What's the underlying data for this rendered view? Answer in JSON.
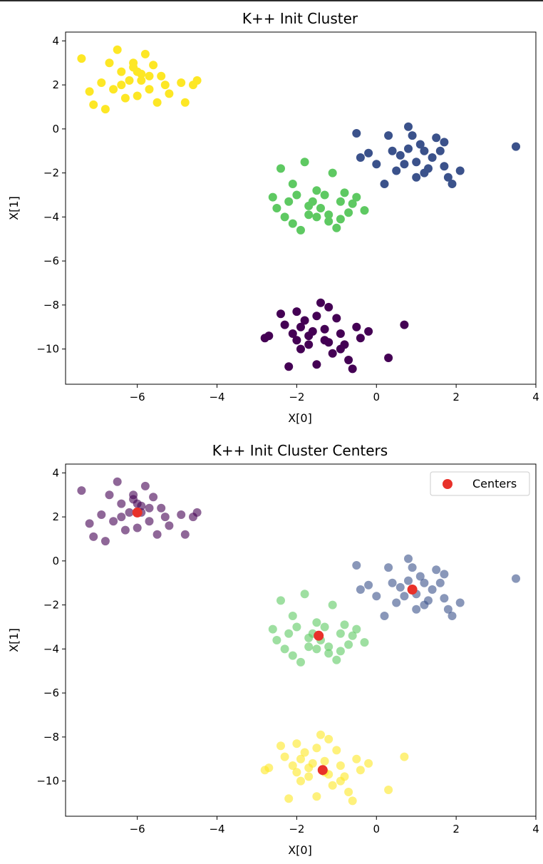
{
  "chart_data": [
    {
      "type": "scatter",
      "title": "K++ Init Cluster",
      "xlabel": "X[0]",
      "ylabel": "X[1]",
      "xlim": [
        -7.8,
        4.0
      ],
      "ylim": [
        -11.6,
        4.4
      ],
      "xticks": [
        -6,
        -4,
        -2,
        0,
        2,
        4
      ],
      "yticks": [
        4,
        2,
        0,
        -2,
        -4,
        -6,
        -8,
        -10
      ],
      "grid": false,
      "point_alpha": 1.0,
      "series": [
        {
          "color": "#440154",
          "points": [
            [
              -2.8,
              -9.5
            ],
            [
              -2.7,
              -9.4
            ],
            [
              -2.4,
              -8.4
            ],
            [
              -2.3,
              -8.9
            ],
            [
              -2.2,
              -10.8
            ],
            [
              -2.1,
              -9.3
            ],
            [
              -2.0,
              -9.6
            ],
            [
              -1.9,
              -9.0
            ],
            [
              -1.8,
              -8.7
            ],
            [
              -1.7,
              -9.8
            ],
            [
              -1.6,
              -9.2
            ],
            [
              -1.5,
              -8.5
            ],
            [
              -1.4,
              -7.9
            ],
            [
              -1.3,
              -9.1
            ],
            [
              -1.2,
              -9.7
            ],
            [
              -1.1,
              -10.2
            ],
            [
              -1.0,
              -8.6
            ],
            [
              -0.9,
              -9.3
            ],
            [
              -0.8,
              -9.8
            ],
            [
              -0.7,
              -10.5
            ],
            [
              -0.6,
              -10.9
            ],
            [
              -0.5,
              -9.0
            ],
            [
              -0.4,
              -9.5
            ],
            [
              -0.2,
              -9.2
            ],
            [
              0.3,
              -10.4
            ],
            [
              0.7,
              -8.9
            ],
            [
              -1.9,
              -10.0
            ],
            [
              -1.5,
              -10.7
            ],
            [
              -1.2,
              -8.1
            ],
            [
              -0.9,
              -10.0
            ],
            [
              -2.0,
              -8.3
            ],
            [
              -1.7,
              -9.4
            ],
            [
              -1.3,
              -9.6
            ]
          ]
        },
        {
          "color": "#3b528b",
          "points": [
            [
              -0.5,
              -0.2
            ],
            [
              -0.4,
              -1.3
            ],
            [
              -0.2,
              -1.1
            ],
            [
              0.0,
              -1.6
            ],
            [
              0.2,
              -2.5
            ],
            [
              0.3,
              -0.3
            ],
            [
              0.5,
              -1.9
            ],
            [
              0.6,
              -1.2
            ],
            [
              0.8,
              -0.9
            ],
            [
              0.8,
              0.1
            ],
            [
              1.0,
              -1.5
            ],
            [
              1.1,
              -0.7
            ],
            [
              1.2,
              -2.0
            ],
            [
              1.4,
              -1.3
            ],
            [
              1.5,
              -0.4
            ],
            [
              1.6,
              -1.0
            ],
            [
              1.7,
              -1.7
            ],
            [
              1.8,
              -2.2
            ],
            [
              1.9,
              -2.5
            ],
            [
              2.1,
              -1.9
            ],
            [
              3.5,
              -0.8
            ],
            [
              0.4,
              -1.0
            ],
            [
              1.3,
              -1.8
            ],
            [
              0.9,
              -0.3
            ],
            [
              1.0,
              -2.2
            ],
            [
              1.7,
              -0.6
            ],
            [
              0.7,
              -1.6
            ],
            [
              1.2,
              -1.0
            ]
          ]
        },
        {
          "color": "#5ec962",
          "points": [
            [
              -2.6,
              -3.1
            ],
            [
              -2.5,
              -3.6
            ],
            [
              -2.4,
              -1.8
            ],
            [
              -2.3,
              -4.0
            ],
            [
              -2.2,
              -3.3
            ],
            [
              -2.1,
              -2.5
            ],
            [
              -2.0,
              -3.0
            ],
            [
              -1.9,
              -4.6
            ],
            [
              -1.8,
              -1.5
            ],
            [
              -1.7,
              -3.9
            ],
            [
              -1.6,
              -3.3
            ],
            [
              -1.5,
              -4.0
            ],
            [
              -1.4,
              -3.6
            ],
            [
              -1.3,
              -3.0
            ],
            [
              -1.2,
              -4.2
            ],
            [
              -1.1,
              -2.0
            ],
            [
              -1.0,
              -4.5
            ],
            [
              -0.9,
              -3.3
            ],
            [
              -0.8,
              -2.9
            ],
            [
              -0.7,
              -3.8
            ],
            [
              -0.6,
              -3.4
            ],
            [
              -0.5,
              -3.1
            ],
            [
              -0.3,
              -3.7
            ],
            [
              -1.5,
              -2.8
            ],
            [
              -2.1,
              -4.3
            ],
            [
              -1.7,
              -3.5
            ],
            [
              -1.2,
              -3.9
            ],
            [
              -0.9,
              -4.1
            ]
          ]
        },
        {
          "color": "#fde725",
          "points": [
            [
              -7.4,
              3.2
            ],
            [
              -7.2,
              1.7
            ],
            [
              -7.1,
              1.1
            ],
            [
              -6.9,
              2.1
            ],
            [
              -6.8,
              0.9
            ],
            [
              -6.7,
              3.0
            ],
            [
              -6.6,
              1.8
            ],
            [
              -6.5,
              3.6
            ],
            [
              -6.4,
              2.6
            ],
            [
              -6.3,
              1.4
            ],
            [
              -6.2,
              2.2
            ],
            [
              -6.1,
              3.0
            ],
            [
              -6.0,
              1.5
            ],
            [
              -5.9,
              2.5
            ],
            [
              -5.8,
              3.4
            ],
            [
              -5.7,
              1.8
            ],
            [
              -5.6,
              2.9
            ],
            [
              -5.5,
              1.2
            ],
            [
              -5.4,
              2.4
            ],
            [
              -5.3,
              2.0
            ],
            [
              -5.2,
              1.6
            ],
            [
              -4.9,
              2.1
            ],
            [
              -4.8,
              1.2
            ],
            [
              -4.6,
              2.0
            ],
            [
              -4.5,
              2.2
            ],
            [
              -5.9,
              2.2
            ],
            [
              -6.1,
              2.8
            ],
            [
              -5.7,
              2.4
            ],
            [
              -6.4,
              2.0
            ],
            [
              -6.0,
              2.6
            ]
          ]
        }
      ]
    },
    {
      "type": "scatter",
      "title": "K++ Init Cluster Centers",
      "xlabel": "X[0]",
      "ylabel": "X[1]",
      "xlim": [
        -7.8,
        4.0
      ],
      "ylim": [
        -11.6,
        4.4
      ],
      "xticks": [
        -6,
        -4,
        -2,
        0,
        2,
        4
      ],
      "yticks": [
        4,
        2,
        0,
        -2,
        -4,
        -6,
        -8,
        -10
      ],
      "grid": false,
      "legend": {
        "placement": "top-right",
        "entries": [
          {
            "label": "Centers",
            "color": "#e8312a"
          }
        ]
      },
      "point_alpha": 0.6,
      "series": [
        {
          "color": "#440154",
          "points": [
            [
              -7.4,
              3.2
            ],
            [
              -7.2,
              1.7
            ],
            [
              -7.1,
              1.1
            ],
            [
              -6.9,
              2.1
            ],
            [
              -6.8,
              0.9
            ],
            [
              -6.7,
              3.0
            ],
            [
              -6.6,
              1.8
            ],
            [
              -6.5,
              3.6
            ],
            [
              -6.4,
              2.6
            ],
            [
              -6.3,
              1.4
            ],
            [
              -6.2,
              2.2
            ],
            [
              -6.1,
              3.0
            ],
            [
              -6.0,
              1.5
            ],
            [
              -5.9,
              2.5
            ],
            [
              -5.8,
              3.4
            ],
            [
              -5.7,
              1.8
            ],
            [
              -5.6,
              2.9
            ],
            [
              -5.5,
              1.2
            ],
            [
              -5.4,
              2.4
            ],
            [
              -5.3,
              2.0
            ],
            [
              -5.2,
              1.6
            ],
            [
              -4.9,
              2.1
            ],
            [
              -4.8,
              1.2
            ],
            [
              -4.6,
              2.0
            ],
            [
              -4.5,
              2.2
            ],
            [
              -5.9,
              2.2
            ],
            [
              -6.1,
              2.8
            ],
            [
              -5.7,
              2.4
            ],
            [
              -6.4,
              2.0
            ],
            [
              -6.0,
              2.6
            ]
          ]
        },
        {
          "color": "#3b528b",
          "points": [
            [
              -0.5,
              -0.2
            ],
            [
              -0.4,
              -1.3
            ],
            [
              -0.2,
              -1.1
            ],
            [
              0.0,
              -1.6
            ],
            [
              0.2,
              -2.5
            ],
            [
              0.3,
              -0.3
            ],
            [
              0.5,
              -1.9
            ],
            [
              0.6,
              -1.2
            ],
            [
              0.8,
              -0.9
            ],
            [
              0.8,
              0.1
            ],
            [
              1.0,
              -1.5
            ],
            [
              1.1,
              -0.7
            ],
            [
              1.2,
              -2.0
            ],
            [
              1.4,
              -1.3
            ],
            [
              1.5,
              -0.4
            ],
            [
              1.6,
              -1.0
            ],
            [
              1.7,
              -1.7
            ],
            [
              1.8,
              -2.2
            ],
            [
              1.9,
              -2.5
            ],
            [
              2.1,
              -1.9
            ],
            [
              3.5,
              -0.8
            ],
            [
              0.4,
              -1.0
            ],
            [
              1.3,
              -1.8
            ],
            [
              0.9,
              -0.3
            ],
            [
              1.0,
              -2.2
            ],
            [
              1.7,
              -0.6
            ],
            [
              0.7,
              -1.6
            ],
            [
              1.2,
              -1.0
            ]
          ]
        },
        {
          "color": "#5ec962",
          "points": [
            [
              -2.6,
              -3.1
            ],
            [
              -2.5,
              -3.6
            ],
            [
              -2.4,
              -1.8
            ],
            [
              -2.3,
              -4.0
            ],
            [
              -2.2,
              -3.3
            ],
            [
              -2.1,
              -2.5
            ],
            [
              -2.0,
              -3.0
            ],
            [
              -1.9,
              -4.6
            ],
            [
              -1.8,
              -1.5
            ],
            [
              -1.7,
              -3.9
            ],
            [
              -1.6,
              -3.3
            ],
            [
              -1.5,
              -4.0
            ],
            [
              -1.4,
              -3.6
            ],
            [
              -1.3,
              -3.0
            ],
            [
              -1.2,
              -4.2
            ],
            [
              -1.1,
              -2.0
            ],
            [
              -1.0,
              -4.5
            ],
            [
              -0.9,
              -3.3
            ],
            [
              -0.8,
              -2.9
            ],
            [
              -0.7,
              -3.8
            ],
            [
              -0.6,
              -3.4
            ],
            [
              -0.5,
              -3.1
            ],
            [
              -0.3,
              -3.7
            ],
            [
              -1.5,
              -2.8
            ],
            [
              -2.1,
              -4.3
            ],
            [
              -1.7,
              -3.5
            ],
            [
              -1.2,
              -3.9
            ],
            [
              -0.9,
              -4.1
            ]
          ]
        },
        {
          "color": "#fde725",
          "points": [
            [
              -2.8,
              -9.5
            ],
            [
              -2.7,
              -9.4
            ],
            [
              -2.4,
              -8.4
            ],
            [
              -2.3,
              -8.9
            ],
            [
              -2.2,
              -10.8
            ],
            [
              -2.1,
              -9.3
            ],
            [
              -2.0,
              -9.6
            ],
            [
              -1.9,
              -9.0
            ],
            [
              -1.8,
              -8.7
            ],
            [
              -1.7,
              -9.8
            ],
            [
              -1.6,
              -9.2
            ],
            [
              -1.5,
              -8.5
            ],
            [
              -1.4,
              -7.9
            ],
            [
              -1.3,
              -9.1
            ],
            [
              -1.2,
              -9.7
            ],
            [
              -1.1,
              -10.2
            ],
            [
              -1.0,
              -8.6
            ],
            [
              -0.9,
              -9.3
            ],
            [
              -0.8,
              -9.8
            ],
            [
              -0.7,
              -10.5
            ],
            [
              -0.6,
              -10.9
            ],
            [
              -0.5,
              -9.0
            ],
            [
              -0.4,
              -9.5
            ],
            [
              -0.2,
              -9.2
            ],
            [
              0.3,
              -10.4
            ],
            [
              0.7,
              -8.9
            ],
            [
              -1.9,
              -10.0
            ],
            [
              -1.5,
              -10.7
            ],
            [
              -1.2,
              -8.1
            ],
            [
              -0.9,
              -10.0
            ],
            [
              -2.0,
              -8.3
            ],
            [
              -1.7,
              -9.4
            ],
            [
              -1.3,
              -9.6
            ]
          ]
        },
        {
          "name": "Centers",
          "color": "#e8312a",
          "points": [
            [
              -6.0,
              2.2
            ],
            [
              0.9,
              -1.3
            ],
            [
              -1.45,
              -3.4
            ],
            [
              -1.35,
              -9.5
            ]
          ]
        }
      ]
    }
  ]
}
